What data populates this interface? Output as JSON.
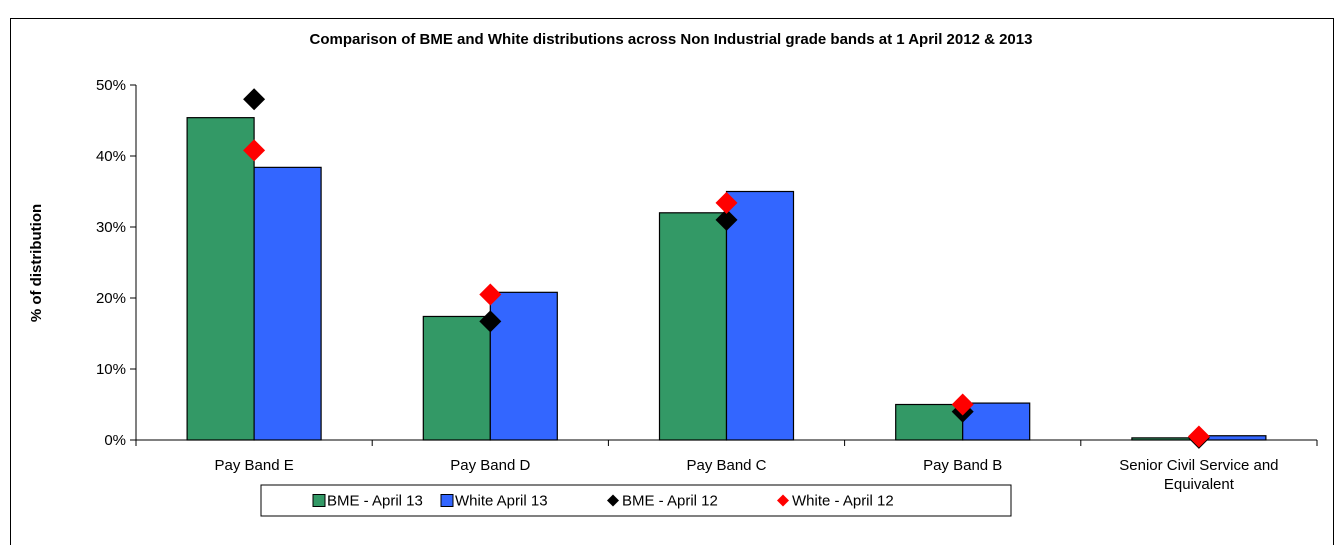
{
  "chart_data": {
    "type": "bar",
    "title": "Comparison of BME and White distributions across Non Industrial grade bands at 1 April 2012 & 2013",
    "ylabel": "% of distribution",
    "xlabel": "",
    "ylim": [
      0,
      50
    ],
    "yticks": [
      "0%",
      "10%",
      "20%",
      "30%",
      "40%",
      "50%"
    ],
    "categories": [
      "Pay Band E",
      "Pay Band D",
      "Pay Band C",
      "Pay Band B",
      "Senior Civil Service and Equivalent"
    ],
    "category_lines": [
      [
        "Pay Band E"
      ],
      [
        "Pay Band D"
      ],
      [
        "Pay Band C"
      ],
      [
        "Pay Band B"
      ],
      [
        "Senior Civil Service and",
        "Equivalent"
      ]
    ],
    "bar_series": [
      {
        "name": "BME - April 13",
        "color": "#339966",
        "values": [
          45.4,
          17.4,
          32.0,
          5.0,
          0.3
        ]
      },
      {
        "name": "White April 13",
        "color": "#3366ff",
        "values": [
          38.4,
          20.8,
          35.0,
          5.2,
          0.6
        ]
      }
    ],
    "marker_series": [
      {
        "name": "BME - April 12",
        "color": "#000000",
        "marker": "diamond",
        "values": [
          48.0,
          16.7,
          31.0,
          4.0,
          0.3
        ]
      },
      {
        "name": "White -  April 12",
        "color": "#ff0000",
        "marker": "diamond",
        "values": [
          40.8,
          20.5,
          33.4,
          5.0,
          0.5
        ]
      }
    ],
    "legend": {
      "position": "bottom",
      "entries": [
        "BME - April 13",
        "White April 13",
        "BME - April 12",
        "White -  April 12"
      ]
    },
    "grid": false
  }
}
